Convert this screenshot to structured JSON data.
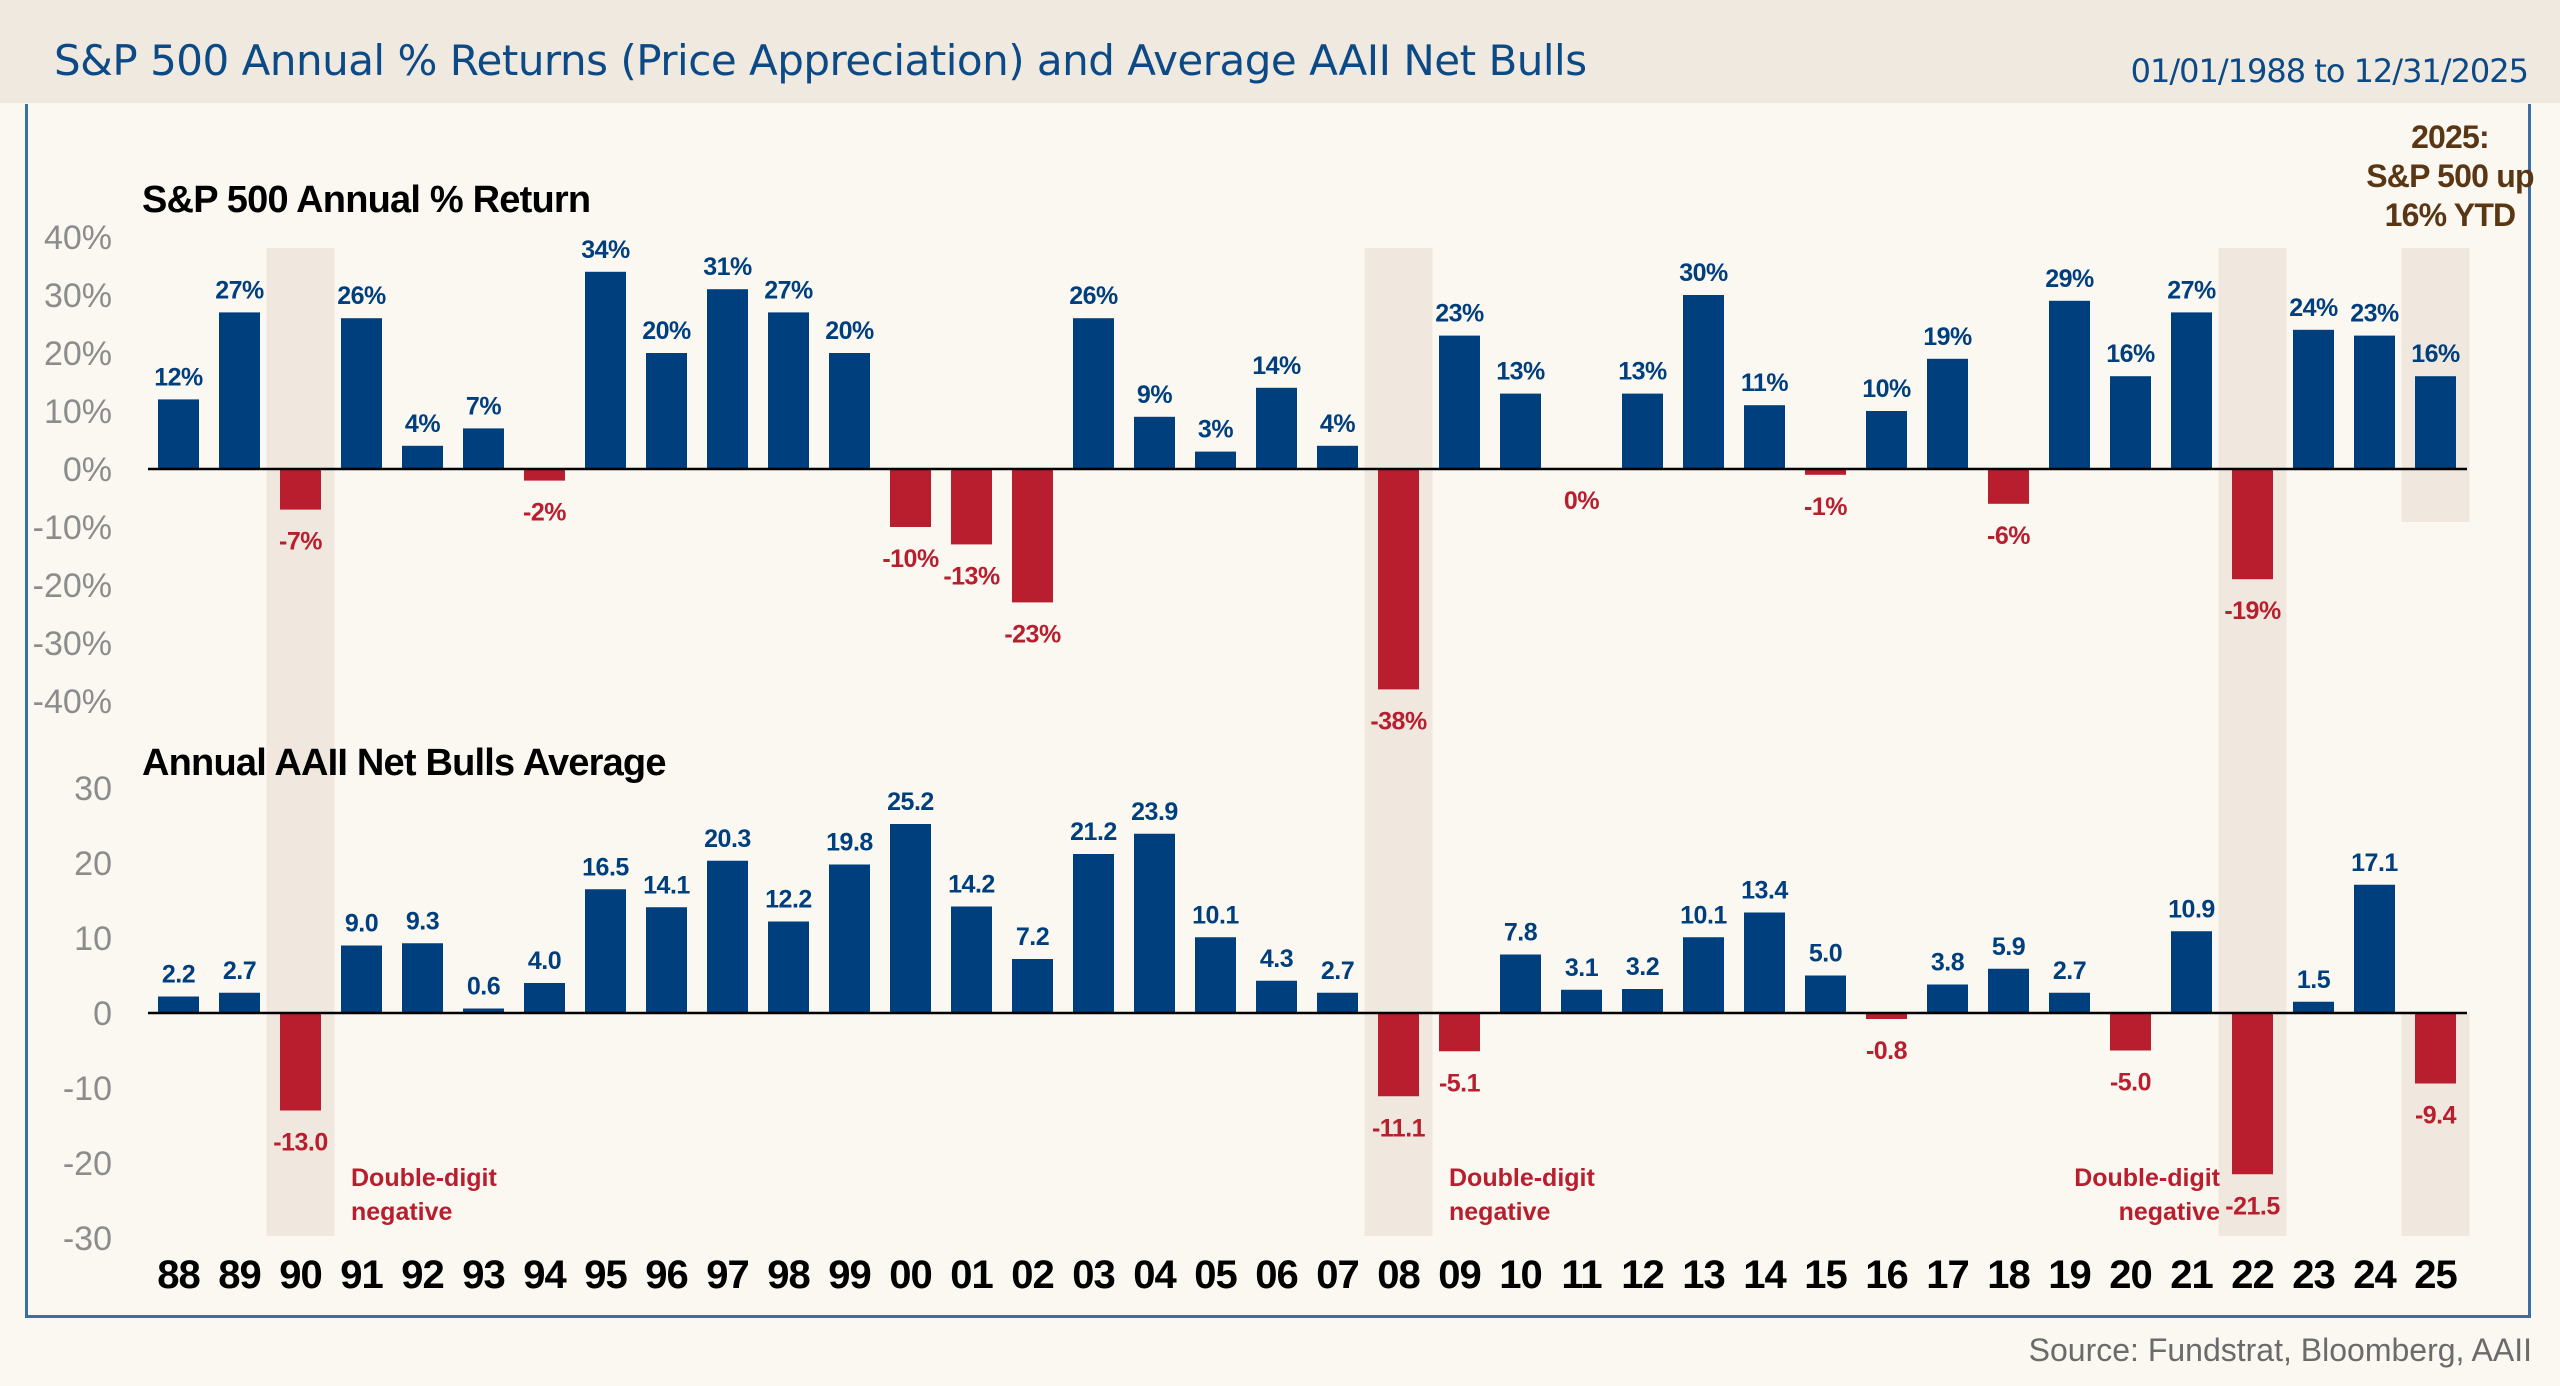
{
  "header": {
    "title": "S&P 500 Annual % Returns (Price Appreciation) and Average AAII Net Bulls",
    "date_range": "01/01/1988 to 12/31/2025"
  },
  "source": "Source: Fundstrat, Bloomberg, AAII",
  "colors": {
    "positive": "#003f7d",
    "negative": "#b81e2d",
    "highlight_band": "#f0e8de",
    "callout": "#5a3714",
    "title": "#0b4a86"
  },
  "callout": {
    "lines": [
      "2025:",
      "S&P 500 up",
      "16% YTD"
    ]
  },
  "chart_data": [
    {
      "type": "bar",
      "title": "S&P 500 Annual % Return",
      "xlabel": "",
      "ylabel": "",
      "ylim": [
        -40,
        40
      ],
      "yticks": [
        40,
        30,
        20,
        10,
        0,
        -10,
        -20,
        -30,
        -40
      ],
      "ytick_labels": [
        "40%",
        "30%",
        "20%",
        "10%",
        "0%",
        "-10%",
        "-20%",
        "-30%",
        "-40%"
      ],
      "grid": false,
      "categories": [
        "88",
        "89",
        "90",
        "91",
        "92",
        "93",
        "94",
        "95",
        "96",
        "97",
        "98",
        "99",
        "00",
        "01",
        "02",
        "03",
        "04",
        "05",
        "06",
        "07",
        "08",
        "09",
        "10",
        "11",
        "12",
        "13",
        "14",
        "15",
        "16",
        "17",
        "18",
        "19",
        "20",
        "21",
        "22",
        "23",
        "24",
        "25"
      ],
      "values": [
        12,
        27,
        -7,
        26,
        4,
        7,
        -2,
        34,
        20,
        31,
        27,
        20,
        -10,
        -13,
        -23,
        26,
        9,
        3,
        14,
        4,
        -38,
        23,
        13,
        0,
        13,
        30,
        11,
        -1,
        10,
        19,
        -6,
        29,
        16,
        27,
        -19,
        24,
        23,
        16
      ],
      "labels": [
        "12%",
        "27%",
        "-7%",
        "26%",
        "4%",
        "7%",
        "-2%",
        "34%",
        "20%",
        "31%",
        "27%",
        "20%",
        "-10%",
        "-13%",
        "-23%",
        "26%",
        "9%",
        "3%",
        "14%",
        "4%",
        "-38%",
        "23%",
        "13%",
        "0%",
        "13%",
        "30%",
        "11%",
        "-1%",
        "10%",
        "19%",
        "-6%",
        "29%",
        "16%",
        "27%",
        "-19%",
        "24%",
        "23%",
        "16%"
      ],
      "highlighted_years": [
        "90",
        "08",
        "22",
        "25"
      ]
    },
    {
      "type": "bar",
      "title": "Annual AAII Net Bulls Average",
      "xlabel": "",
      "ylabel": "",
      "ylim": [
        -30,
        30
      ],
      "yticks": [
        30,
        20,
        10,
        0,
        -10,
        -20,
        -30
      ],
      "ytick_labels": [
        "30",
        "20",
        "10",
        "0",
        "-10",
        "-20",
        "-30"
      ],
      "grid": false,
      "categories": [
        "88",
        "89",
        "90",
        "91",
        "92",
        "93",
        "94",
        "95",
        "96",
        "97",
        "98",
        "99",
        "00",
        "01",
        "02",
        "03",
        "04",
        "05",
        "06",
        "07",
        "08",
        "09",
        "10",
        "11",
        "12",
        "13",
        "14",
        "15",
        "16",
        "17",
        "18",
        "19",
        "20",
        "21",
        "22",
        "23",
        "24",
        "25"
      ],
      "values": [
        2.2,
        2.7,
        -13.0,
        9.0,
        9.3,
        0.6,
        4.0,
        16.5,
        14.1,
        20.3,
        12.2,
        19.8,
        25.2,
        14.2,
        7.2,
        21.2,
        23.9,
        10.1,
        4.3,
        2.7,
        -11.1,
        -5.1,
        7.8,
        3.1,
        3.2,
        10.1,
        13.4,
        5.0,
        -0.8,
        3.8,
        5.9,
        2.7,
        -5.0,
        10.9,
        -21.5,
        1.5,
        17.1,
        -9.4
      ],
      "labels": [
        "2.2",
        "2.7",
        "-13.0",
        "9.0",
        "9.3",
        "0.6",
        "4.0",
        "16.5",
        "14.1",
        "20.3",
        "12.2",
        "19.8",
        "25.2",
        "14.2",
        "7.2",
        "21.2",
        "23.9",
        "10.1",
        "4.3",
        "2.7",
        "-11.1",
        "-5.1",
        "7.8",
        "3.1",
        "3.2",
        "10.1",
        "13.4",
        "5.0",
        "-0.8",
        "3.8",
        "5.9",
        "2.7",
        "-5.0",
        "10.9",
        "-21.5",
        "1.5",
        "17.1",
        "-9.4"
      ],
      "highlighted_years": [
        "90",
        "08",
        "22",
        "25"
      ],
      "annotations": [
        {
          "near": "90",
          "lines": [
            "Double-digit",
            "negative"
          ]
        },
        {
          "near": "08",
          "lines": [
            "Double-digit",
            "negative"
          ]
        },
        {
          "near": "22",
          "lines": [
            "Double-digit",
            "negative"
          ]
        }
      ]
    }
  ]
}
